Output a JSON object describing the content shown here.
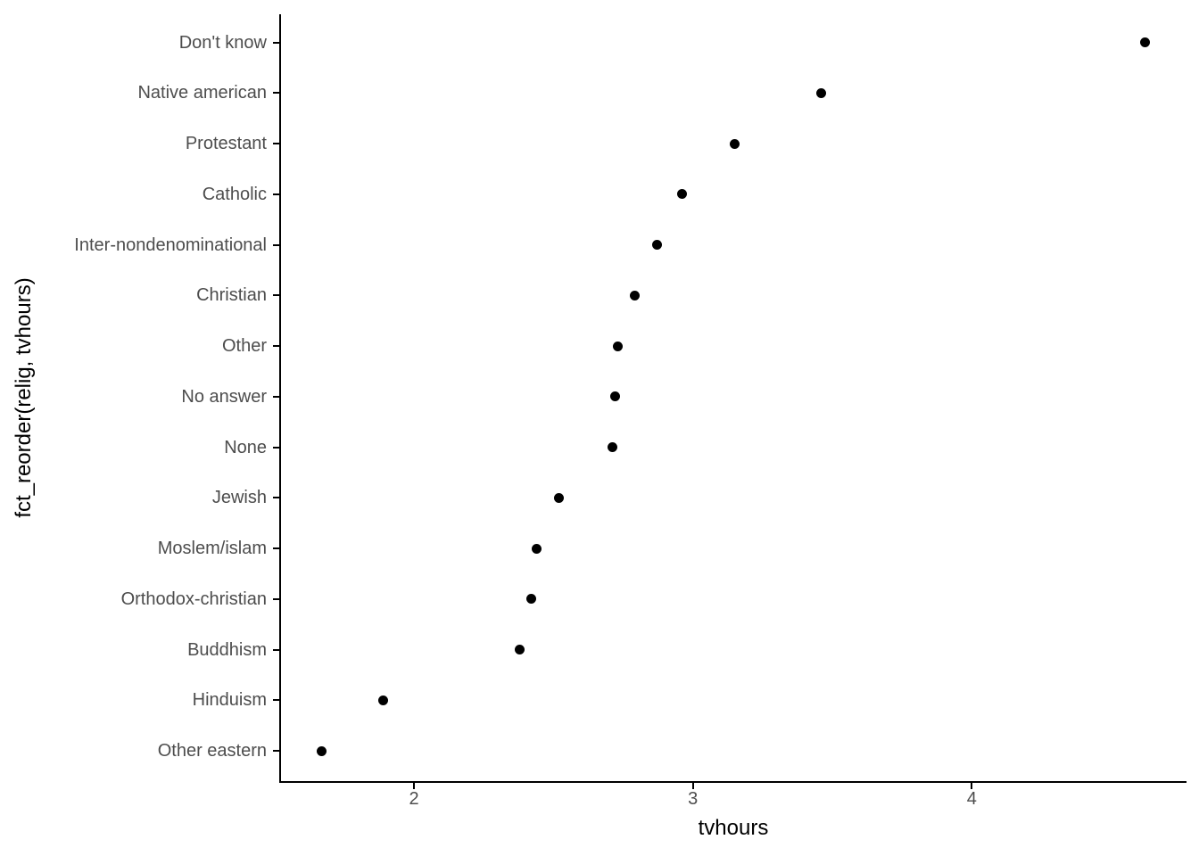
{
  "chart_data": {
    "type": "scatter",
    "subtype": "dot-plot-horizontal",
    "title": "",
    "xlabel": "tvhours",
    "ylabel": "fct_reorder(relig, tvhours)",
    "xlim": [
      1.52,
      4.77
    ],
    "x_ticks": [
      2,
      3,
      4
    ],
    "x_tick_labels": [
      "2",
      "3",
      "4"
    ],
    "grid": false,
    "legend": "none",
    "background_color": "#ffffff",
    "point_color": "#000000",
    "axis_line_color": "#000000",
    "tick_label_color": "#4d4d4d",
    "axis_title_color": "#000000",
    "categories": [
      "Don't know",
      "Native american",
      "Protestant",
      "Catholic",
      "Inter-nondenominational",
      "Christian",
      "Other",
      "No answer",
      "None",
      "Jewish",
      "Moslem/islam",
      "Orthodox-christian",
      "Buddhism",
      "Hinduism",
      "Other eastern"
    ],
    "values": [
      4.62,
      3.46,
      3.15,
      2.96,
      2.87,
      2.79,
      2.73,
      2.72,
      2.71,
      2.52,
      2.44,
      2.42,
      2.38,
      1.89,
      1.67
    ]
  }
}
